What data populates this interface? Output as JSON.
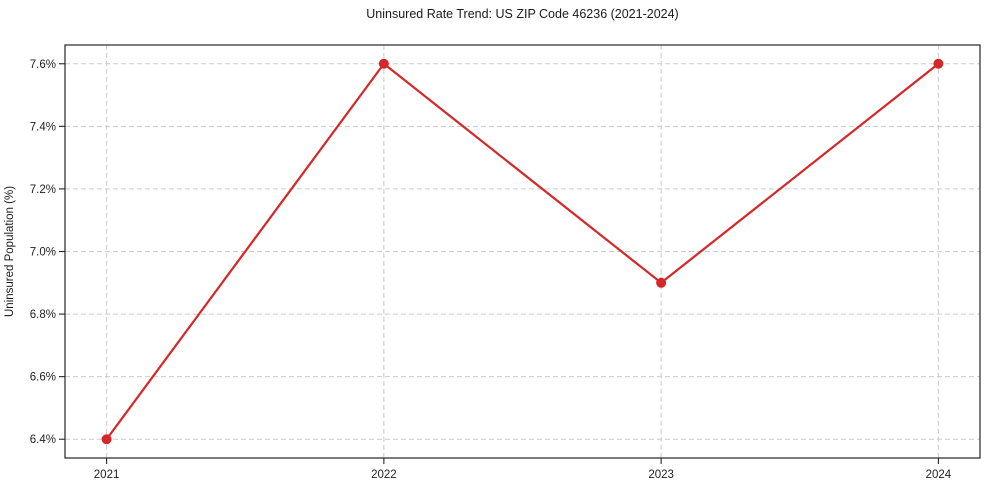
{
  "chart_data": {
    "type": "line",
    "title": "Uninsured Rate Trend: US ZIP Code 46236 (2021-2024)",
    "xlabel": "",
    "ylabel": "Uninsured Population (%)",
    "x": [
      2021,
      2022,
      2023,
      2024
    ],
    "x_tick_labels": [
      "2021",
      "2022",
      "2023",
      "2024"
    ],
    "values": [
      6.4,
      7.6,
      6.9,
      7.6
    ],
    "y_ticks": [
      6.4,
      6.6,
      6.8,
      7.0,
      7.2,
      7.4,
      7.6
    ],
    "y_tick_labels": [
      "6.4%",
      "6.6%",
      "6.8%",
      "7.0%",
      "7.2%",
      "7.4%",
      "7.6%"
    ],
    "xlim": [
      2020.85,
      2024.15
    ],
    "ylim": [
      6.34,
      7.66
    ],
    "grid": true,
    "grid_style": "dashed",
    "legend": "none",
    "line_color": "#d62728",
    "marker": "circle",
    "marker_radius": 5,
    "line_width": 2.2
  }
}
